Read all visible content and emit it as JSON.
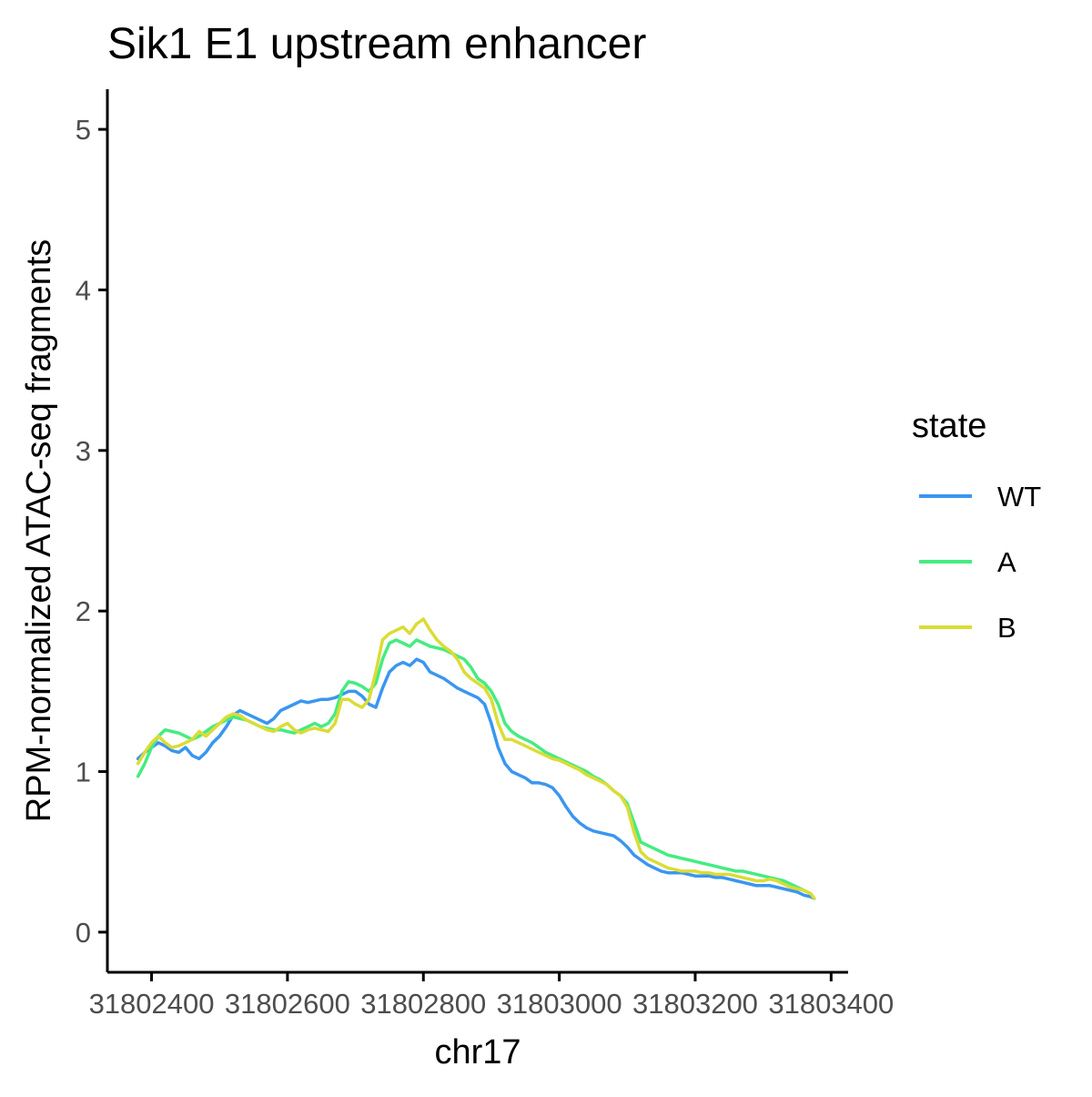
{
  "chart_data": {
    "type": "line",
    "title": "Sik1 E1 upstream enhancer",
    "xlabel": "chr17",
    "ylabel": "RPM-normalized ATAC-seq fragments",
    "xlim": [
      31802335,
      31803425
    ],
    "ylim": [
      -0.25,
      5.25
    ],
    "xticks": [
      31802400,
      31802600,
      31802800,
      31803000,
      31803200,
      31803400
    ],
    "xtick_labels": [
      "31802400",
      "31802600",
      "31802800",
      "31803000",
      "31803200",
      "31803400"
    ],
    "yticks": [
      0,
      1,
      2,
      3,
      4,
      5
    ],
    "ytick_labels": [
      "0",
      "1",
      "2",
      "3",
      "4",
      "5"
    ],
    "grid": false,
    "legend": {
      "title": "state",
      "position": "right"
    },
    "series": [
      {
        "name": "WT",
        "color": "#3a96f0",
        "x": [
          31802380,
          31802390,
          31802400,
          31802410,
          31802420,
          31802430,
          31802440,
          31802450,
          31802460,
          31802470,
          31802480,
          31802490,
          31802500,
          31802510,
          31802520,
          31802530,
          31802540,
          31802550,
          31802560,
          31802570,
          31802580,
          31802590,
          31802600,
          31802610,
          31802620,
          31802630,
          31802640,
          31802650,
          31802660,
          31802670,
          31802680,
          31802690,
          31802700,
          31802710,
          31802720,
          31802730,
          31802740,
          31802750,
          31802760,
          31802770,
          31802780,
          31802790,
          31802800,
          31802810,
          31802820,
          31802830,
          31802840,
          31802850,
          31802860,
          31802870,
          31802880,
          31802890,
          31802900,
          31802910,
          31802920,
          31802930,
          31802940,
          31802950,
          31802960,
          31802970,
          31802980,
          31802990,
          31803000,
          31803010,
          31803020,
          31803030,
          31803040,
          31803050,
          31803060,
          31803070,
          31803080,
          31803090,
          31803100,
          31803110,
          31803120,
          31803130,
          31803140,
          31803150,
          31803160,
          31803170,
          31803180,
          31803190,
          31803200,
          31803210,
          31803220,
          31803230,
          31803240,
          31803250,
          31803260,
          31803270,
          31803280,
          31803290,
          31803300,
          31803310,
          31803320,
          31803330,
          31803340,
          31803350,
          31803360,
          31803370,
          31803375
        ],
        "y": [
          1.08,
          1.12,
          1.15,
          1.18,
          1.16,
          1.13,
          1.12,
          1.15,
          1.1,
          1.08,
          1.12,
          1.18,
          1.22,
          1.28,
          1.35,
          1.38,
          1.36,
          1.34,
          1.32,
          1.3,
          1.33,
          1.38,
          1.4,
          1.42,
          1.44,
          1.43,
          1.44,
          1.45,
          1.45,
          1.46,
          1.48,
          1.5,
          1.5,
          1.47,
          1.42,
          1.4,
          1.52,
          1.62,
          1.66,
          1.68,
          1.66,
          1.7,
          1.68,
          1.62,
          1.6,
          1.58,
          1.55,
          1.52,
          1.5,
          1.48,
          1.46,
          1.42,
          1.3,
          1.15,
          1.05,
          1.0,
          0.98,
          0.96,
          0.93,
          0.93,
          0.92,
          0.9,
          0.85,
          0.78,
          0.72,
          0.68,
          0.65,
          0.63,
          0.62,
          0.61,
          0.6,
          0.57,
          0.53,
          0.48,
          0.45,
          0.42,
          0.4,
          0.38,
          0.37,
          0.37,
          0.37,
          0.36,
          0.35,
          0.35,
          0.35,
          0.34,
          0.34,
          0.33,
          0.32,
          0.31,
          0.3,
          0.29,
          0.29,
          0.29,
          0.28,
          0.27,
          0.26,
          0.25,
          0.23,
          0.22,
          0.21
        ]
      },
      {
        "name": "A",
        "color": "#45ec80",
        "x": [
          31802380,
          31802390,
          31802400,
          31802410,
          31802420,
          31802430,
          31802440,
          31802450,
          31802460,
          31802470,
          31802480,
          31802490,
          31802500,
          31802510,
          31802520,
          31802530,
          31802540,
          31802550,
          31802560,
          31802570,
          31802580,
          31802590,
          31802600,
          31802610,
          31802620,
          31802630,
          31802640,
          31802650,
          31802660,
          31802670,
          31802680,
          31802690,
          31802700,
          31802710,
          31802720,
          31802730,
          31802740,
          31802750,
          31802760,
          31802770,
          31802780,
          31802790,
          31802800,
          31802810,
          31802820,
          31802830,
          31802840,
          31802850,
          31802860,
          31802870,
          31802880,
          31802890,
          31802900,
          31802910,
          31802920,
          31802930,
          31802940,
          31802950,
          31802960,
          31802970,
          31802980,
          31802990,
          31803000,
          31803010,
          31803020,
          31803030,
          31803040,
          31803050,
          31803060,
          31803070,
          31803080,
          31803090,
          31803100,
          31803110,
          31803120,
          31803130,
          31803140,
          31803150,
          31803160,
          31803170,
          31803180,
          31803190,
          31803200,
          31803210,
          31803220,
          31803230,
          31803240,
          31803250,
          31803260,
          31803270,
          31803280,
          31803290,
          31803300,
          31803310,
          31803320,
          31803330,
          31803340,
          31803350,
          31803360,
          31803370,
          31803375
        ],
        "y": [
          0.97,
          1.05,
          1.15,
          1.22,
          1.26,
          1.25,
          1.24,
          1.22,
          1.2,
          1.22,
          1.25,
          1.28,
          1.3,
          1.32,
          1.34,
          1.33,
          1.32,
          1.3,
          1.28,
          1.27,
          1.26,
          1.26,
          1.25,
          1.24,
          1.26,
          1.28,
          1.3,
          1.28,
          1.3,
          1.36,
          1.5,
          1.56,
          1.55,
          1.53,
          1.5,
          1.55,
          1.7,
          1.8,
          1.82,
          1.8,
          1.78,
          1.82,
          1.8,
          1.78,
          1.77,
          1.76,
          1.74,
          1.72,
          1.7,
          1.65,
          1.58,
          1.55,
          1.5,
          1.42,
          1.3,
          1.25,
          1.22,
          1.2,
          1.18,
          1.15,
          1.12,
          1.1,
          1.08,
          1.06,
          1.04,
          1.02,
          1.0,
          0.97,
          0.95,
          0.92,
          0.88,
          0.85,
          0.8,
          0.68,
          0.56,
          0.54,
          0.52,
          0.5,
          0.48,
          0.47,
          0.46,
          0.45,
          0.44,
          0.43,
          0.42,
          0.41,
          0.4,
          0.39,
          0.38,
          0.38,
          0.37,
          0.36,
          0.35,
          0.34,
          0.33,
          0.32,
          0.3,
          0.28,
          0.26,
          0.24,
          0.21
        ]
      },
      {
        "name": "B",
        "color": "#dbdc36",
        "x": [
          31802380,
          31802390,
          31802400,
          31802410,
          31802420,
          31802430,
          31802440,
          31802450,
          31802460,
          31802470,
          31802480,
          31802490,
          31802500,
          31802510,
          31802520,
          31802530,
          31802540,
          31802550,
          31802560,
          31802570,
          31802580,
          31802590,
          31802600,
          31802610,
          31802620,
          31802630,
          31802640,
          31802650,
          31802660,
          31802670,
          31802680,
          31802690,
          31802700,
          31802710,
          31802720,
          31802730,
          31802740,
          31802750,
          31802760,
          31802770,
          31802780,
          31802790,
          31802800,
          31802810,
          31802820,
          31802830,
          31802840,
          31802850,
          31802860,
          31802870,
          31802880,
          31802890,
          31802900,
          31802910,
          31802920,
          31802930,
          31802940,
          31802950,
          31802960,
          31802970,
          31802980,
          31802990,
          31803000,
          31803010,
          31803020,
          31803030,
          31803040,
          31803050,
          31803060,
          31803070,
          31803080,
          31803090,
          31803100,
          31803110,
          31803120,
          31803130,
          31803140,
          31803150,
          31803160,
          31803170,
          31803180,
          31803190,
          31803200,
          31803210,
          31803220,
          31803230,
          31803240,
          31803250,
          31803260,
          31803270,
          31803280,
          31803290,
          31803300,
          31803310,
          31803320,
          31803330,
          31803340,
          31803350,
          31803360,
          31803370,
          31803375
        ],
        "y": [
          1.05,
          1.12,
          1.18,
          1.22,
          1.18,
          1.15,
          1.16,
          1.18,
          1.2,
          1.25,
          1.22,
          1.26,
          1.3,
          1.34,
          1.36,
          1.35,
          1.32,
          1.3,
          1.28,
          1.26,
          1.25,
          1.28,
          1.3,
          1.26,
          1.24,
          1.26,
          1.27,
          1.26,
          1.25,
          1.3,
          1.45,
          1.45,
          1.42,
          1.4,
          1.45,
          1.62,
          1.82,
          1.86,
          1.88,
          1.9,
          1.86,
          1.92,
          1.95,
          1.88,
          1.82,
          1.78,
          1.75,
          1.7,
          1.62,
          1.58,
          1.55,
          1.52,
          1.45,
          1.3,
          1.2,
          1.2,
          1.18,
          1.16,
          1.14,
          1.12,
          1.1,
          1.08,
          1.07,
          1.05,
          1.03,
          1.01,
          0.98,
          0.96,
          0.94,
          0.92,
          0.88,
          0.85,
          0.78,
          0.62,
          0.5,
          0.46,
          0.44,
          0.42,
          0.4,
          0.39,
          0.38,
          0.38,
          0.38,
          0.37,
          0.37,
          0.36,
          0.36,
          0.36,
          0.35,
          0.34,
          0.33,
          0.32,
          0.32,
          0.33,
          0.32,
          0.3,
          0.28,
          0.27,
          0.26,
          0.24,
          0.21
        ]
      }
    ]
  }
}
